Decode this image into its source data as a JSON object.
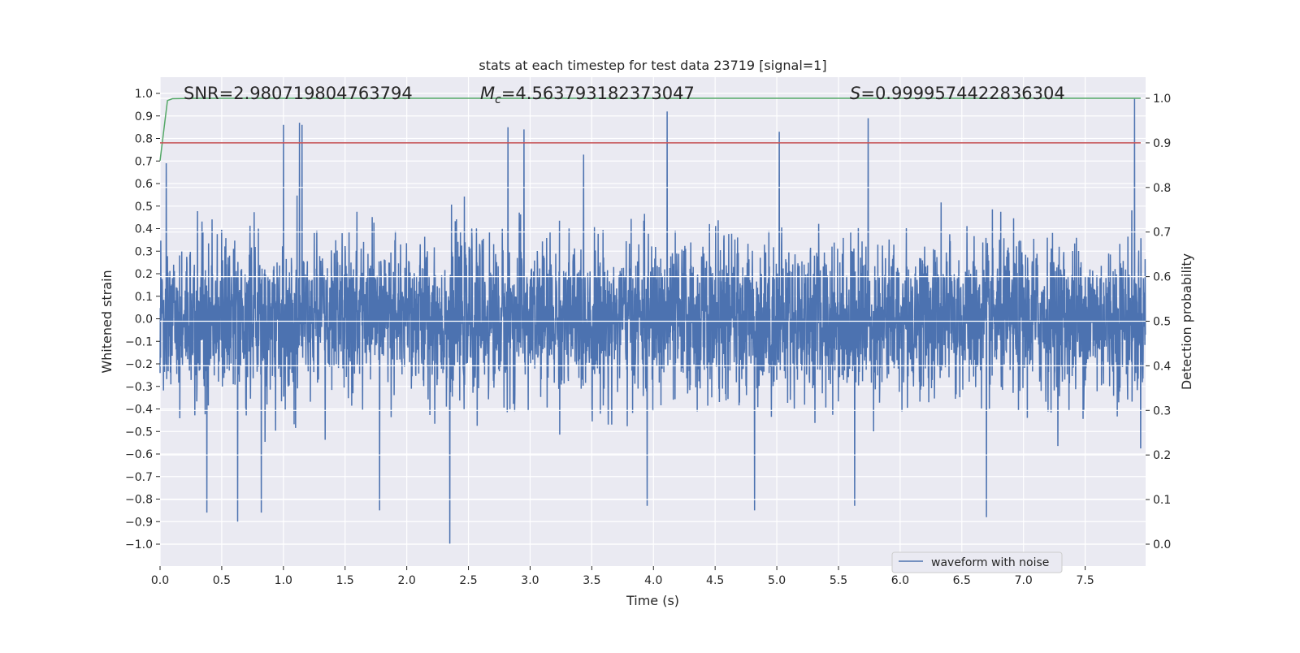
{
  "chart_data": {
    "type": "line",
    "title": "stats at each timestep for test data 23719 [signal=1]",
    "xlabel": "Time (s)",
    "ylabel": "Whitened strain",
    "y2label": "Detection probability",
    "xlim": [
      0,
      7.99
    ],
    "ylim": [
      -1.1,
      1.07
    ],
    "y2lim": [
      -0.05,
      1.045
    ],
    "xticks": [
      "0.0",
      "0.5",
      "1.0",
      "1.5",
      "2.0",
      "2.5",
      "3.0",
      "3.5",
      "4.0",
      "4.5",
      "5.0",
      "5.5",
      "6.0",
      "6.5",
      "7.0",
      "7.5"
    ],
    "yticks": [
      "1.0",
      "0.9",
      "0.8",
      "0.7",
      "0.6",
      "0.5",
      "0.4",
      "0.3",
      "0.2",
      "0.1",
      "0.0",
      "−0.1",
      "−0.2",
      "−0.3",
      "−0.4",
      "−0.5",
      "−0.6",
      "−0.7",
      "−0.8",
      "−0.9",
      "−1.0"
    ],
    "y2ticks": [
      "1.0",
      "0.9",
      "0.8",
      "0.7",
      "0.6",
      "0.5",
      "0.4",
      "0.3",
      "0.2",
      "0.1",
      "0.0"
    ],
    "grid": true,
    "legend": {
      "placement": "lower-right",
      "entries": [
        "waveform with noise"
      ]
    },
    "annotations": {
      "snr": "SNR=2.980719804763794",
      "mc_symbol": "M",
      "mc_sub": "c",
      "mc_value": "=4.563793182373047",
      "s_symbol": "S",
      "s_value": "=0.9999574422836304"
    },
    "series": [
      {
        "name": "waveform with noise",
        "axis": "left",
        "color": "#4c72b0",
        "noise_std": 0.17,
        "peaks": [
          [
            0.05,
            0.69
          ],
          [
            0.38,
            -0.86
          ],
          [
            0.63,
            -0.9
          ],
          [
            0.82,
            -0.86
          ],
          [
            1.0,
            0.86
          ],
          [
            1.13,
            0.87
          ],
          [
            1.15,
            0.86
          ],
          [
            1.78,
            -0.85
          ],
          [
            2.35,
            -1.0
          ],
          [
            2.82,
            0.85
          ],
          [
            2.95,
            0.84
          ],
          [
            3.95,
            -0.83
          ],
          [
            4.11,
            0.92
          ],
          [
            4.82,
            -0.85
          ],
          [
            5.02,
            0.83
          ],
          [
            5.63,
            -0.83
          ],
          [
            5.74,
            0.89
          ],
          [
            6.7,
            -0.88
          ],
          [
            7.9,
            0.98
          ]
        ]
      },
      {
        "name": "detection probability",
        "axis": "right",
        "color": "#55a868",
        "x": [
          0.0,
          0.06,
          0.1,
          0.3,
          7.95
        ],
        "values": [
          0.86,
          0.995,
          0.999,
          0.9999,
          0.9999
        ]
      },
      {
        "name": "threshold",
        "axis": "right",
        "color": "#c44e52",
        "x": [
          0.0,
          7.95
        ],
        "values": [
          0.9,
          0.9
        ]
      }
    ]
  }
}
